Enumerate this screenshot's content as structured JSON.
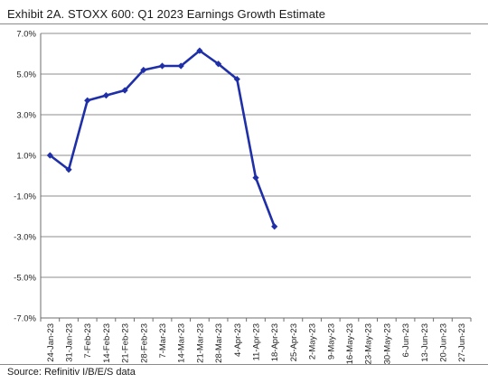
{
  "chart_data": {
    "type": "line",
    "title": "Exhibit 2A.  STOXX 600: Q1 2023 Earnings Growth Estimate",
    "source": "Source: Refinitiv I/B/E/S data",
    "xlabel": "",
    "ylabel": "",
    "ylim": [
      -7.0,
      7.0
    ],
    "y_ticks": [
      "7.0%",
      "5.0%",
      "3.0%",
      "1.0%",
      "-1.0%",
      "-3.0%",
      "-5.0%",
      "-7.0%"
    ],
    "y_tick_values": [
      7,
      5,
      3,
      1,
      -1,
      -3,
      -5,
      -7
    ],
    "categories": [
      "24-Jan-23",
      "31-Jan-23",
      "7-Feb-23",
      "14-Feb-23",
      "21-Feb-23",
      "28-Feb-23",
      "7-Mar-23",
      "14-Mar-23",
      "21-Mar-23",
      "28-Mar-23",
      "4-Apr-23",
      "11-Apr-23",
      "18-Apr-23",
      "25-Apr-23",
      "2-May-23",
      "9-May-23",
      "16-May-23",
      "23-May-23",
      "30-May-23",
      "6-Jun-23",
      "13-Jun-23",
      "20-Jun-23",
      "27-Jun-23"
    ],
    "series": [
      {
        "values": [
          1.0,
          0.3,
          3.7,
          3.95,
          4.2,
          5.2,
          5.4,
          5.4,
          6.15,
          5.5,
          4.75,
          -0.1,
          -2.5,
          null,
          null,
          null,
          null,
          null,
          null,
          null,
          null,
          null,
          null
        ],
        "color": "#1f2fa8"
      }
    ],
    "grid": "horizontal",
    "legend": "none"
  }
}
